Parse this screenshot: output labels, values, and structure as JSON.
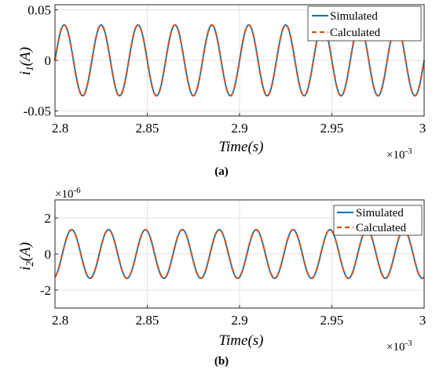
{
  "chart_data": [
    {
      "type": "line",
      "panel_label": "(a)",
      "xlabel": "Time(s)",
      "ylabel": "i_1(A)",
      "x_exponent": "×10",
      "x_exponent_power": "-3",
      "y_exponent": "",
      "y_exponent_power": "",
      "xlim": [
        2.8,
        3.0
      ],
      "ylim": [
        -0.055,
        0.055
      ],
      "xticks": [
        2.8,
        2.85,
        2.9,
        2.95,
        3.0
      ],
      "xtick_labels": [
        "2.8",
        "2.85",
        "2.9",
        "2.95",
        "3"
      ],
      "yticks": [
        0.05,
        0,
        -0.05
      ],
      "ytick_labels": [
        "0.05",
        "0",
        "-0.05"
      ],
      "grid": true,
      "legend_position": "top-right",
      "amplitude": 0.035,
      "period": 0.02,
      "phase_start": 2.8,
      "series": [
        {
          "name": "Simulated",
          "style": "solid",
          "color": "#0072BD"
        },
        {
          "name": "Calculated",
          "style": "dashed",
          "color": "#D95319"
        }
      ]
    },
    {
      "type": "line",
      "panel_label": "(b)",
      "xlabel": "Time(s)",
      "ylabel": "i_2(A)",
      "x_exponent": "×10",
      "x_exponent_power": "-3",
      "y_exponent": "×10",
      "y_exponent_power": "-6",
      "xlim": [
        2.8,
        3.0
      ],
      "ylim": [
        -3,
        3
      ],
      "xticks": [
        2.8,
        2.85,
        2.9,
        2.95,
        3.0
      ],
      "xtick_labels": [
        "2.8",
        "2.85",
        "2.9",
        "2.95",
        "3"
      ],
      "yticks": [
        2,
        0,
        -2
      ],
      "ytick_labels": [
        "2",
        "0",
        "-2"
      ],
      "grid": true,
      "legend_position": "top-right",
      "amplitude": 1.35,
      "period": 0.02,
      "phase_start": 2.804,
      "series": [
        {
          "name": "Simulated",
          "style": "solid",
          "color": "#0072BD"
        },
        {
          "name": "Calculated",
          "style": "dashed",
          "color": "#D95319"
        }
      ]
    }
  ]
}
